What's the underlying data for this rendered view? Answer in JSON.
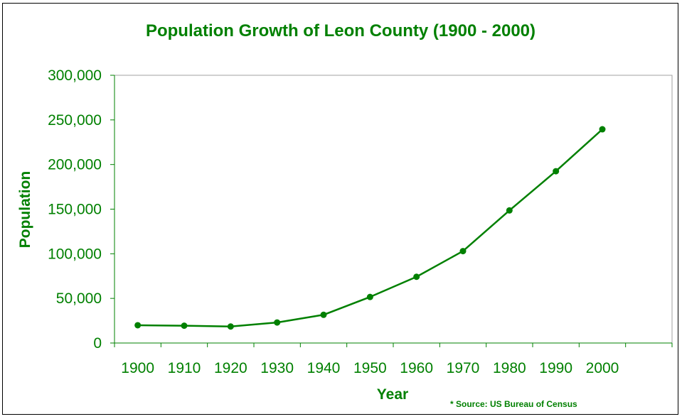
{
  "chart_data": {
    "type": "line",
    "title": "Population Growth of Leon County (1900 - 2000)",
    "xlabel": "Year",
    "ylabel": "Population",
    "categories": [
      "1900",
      "1910",
      "1920",
      "1930",
      "1940",
      "1950",
      "1960",
      "1970",
      "1980",
      "1990",
      "2000"
    ],
    "series": [
      {
        "name": "Population",
        "values": [
          19900,
          19400,
          18500,
          23000,
          31600,
          51600,
          74200,
          103000,
          148600,
          192500,
          239500
        ]
      }
    ],
    "ylim": [
      0,
      300000
    ],
    "yticks": [
      0,
      50000,
      100000,
      150000,
      200000,
      250000,
      300000
    ],
    "ytick_labels": [
      "0",
      "50,000",
      "100,000",
      "150,000",
      "200,000",
      "250,000",
      "300,000"
    ],
    "x_slots": 12,
    "grid": false,
    "source_note": "* Source: US Bureau of Census",
    "colors": {
      "series": "#008000",
      "text": "#008000",
      "axes": "#008000",
      "frame": "#000000",
      "background": "#ffffff"
    }
  }
}
